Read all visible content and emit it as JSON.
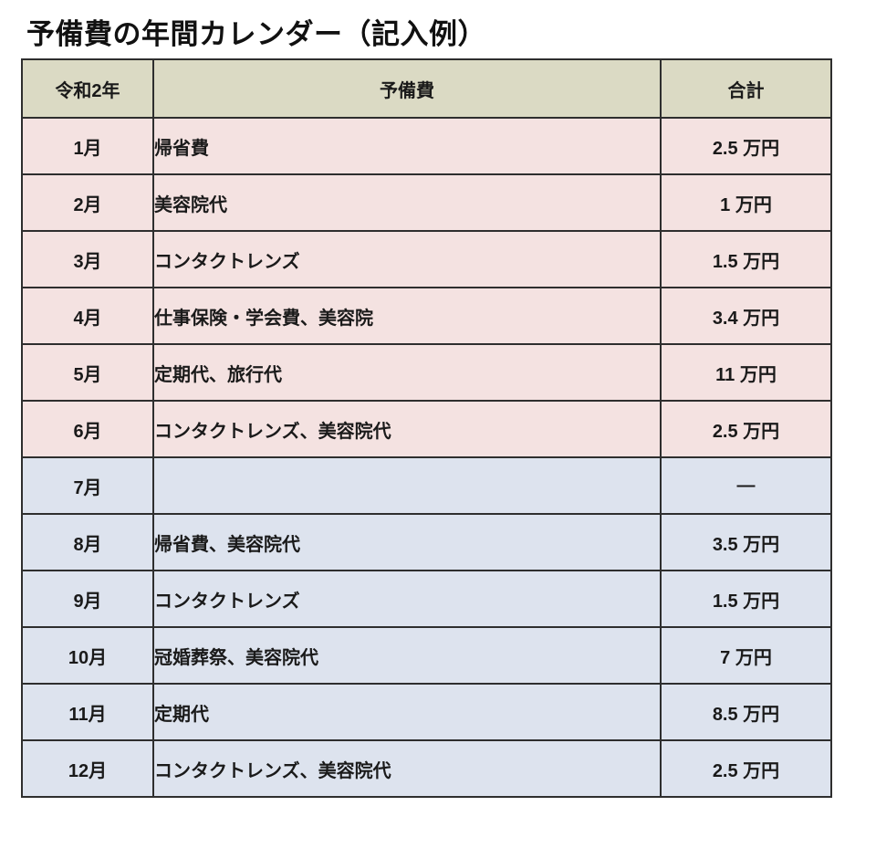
{
  "page": {
    "title": "予備費の年間カレンダー（記入例）"
  },
  "colors": {
    "header_bg": "#dbdac4",
    "pink_row": "#f4e2e1",
    "blue_row": "#dde3ee",
    "border": "#2e2e2e",
    "text": "#1a1a1a"
  },
  "table": {
    "headers": {
      "year": "令和2年",
      "item": "予備費",
      "total": "合計"
    },
    "rows": [
      {
        "month": "1月",
        "item": "帰省費",
        "total": "2.5 万円",
        "tone": "pink"
      },
      {
        "month": "2月",
        "item": "美容院代",
        "total": "1 万円",
        "tone": "pink"
      },
      {
        "month": "3月",
        "item": "コンタクトレンズ",
        "total": "1.5 万円",
        "tone": "pink"
      },
      {
        "month": "4月",
        "item": "仕事保険・学会費、美容院",
        "total": "3.4 万円",
        "tone": "pink"
      },
      {
        "month": "5月",
        "item": "定期代、旅行代",
        "total": "11 万円",
        "tone": "pink"
      },
      {
        "month": "6月",
        "item": "コンタクトレンズ、美容院代",
        "total": "2.5 万円",
        "tone": "pink"
      },
      {
        "month": "7月",
        "item": "",
        "total": "—",
        "tone": "blue"
      },
      {
        "month": "8月",
        "item": "帰省費、美容院代",
        "total": "3.5 万円",
        "tone": "blue"
      },
      {
        "month": "9月",
        "item": "コンタクトレンズ",
        "total": "1.5 万円",
        "tone": "blue"
      },
      {
        "month": "10月",
        "item": "冠婚葬祭、美容院代",
        "total": "7 万円",
        "tone": "blue"
      },
      {
        "month": "11月",
        "item": "定期代",
        "total": "8.5 万円",
        "tone": "blue"
      },
      {
        "month": "12月",
        "item": "コンタクトレンズ、美容院代",
        "total": "2.5 万円",
        "tone": "blue"
      }
    ]
  }
}
